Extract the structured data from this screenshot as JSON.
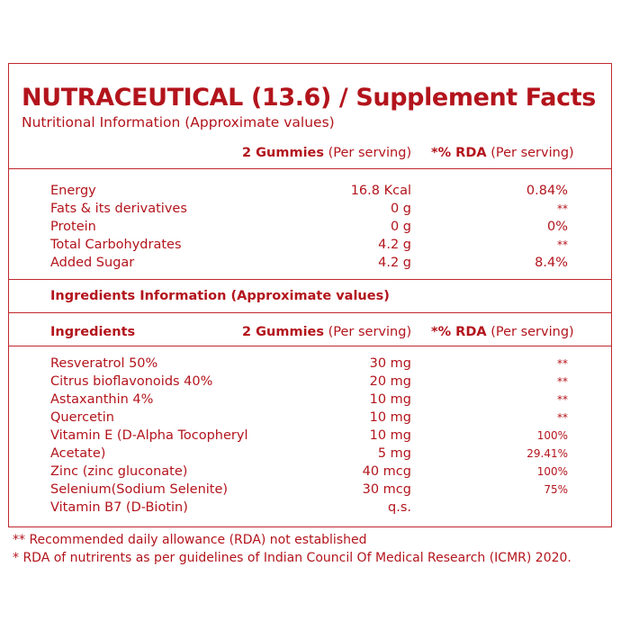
{
  "title": "NUTRACEUTICAL (13.6) / Supplement Facts",
  "subtitle": "Nutritional Information (Approximate values)",
  "nutrition_header": {
    "amount_bold": "2 Gummies",
    "amount_rest": " (Per serving)",
    "rda_bold": "*% RDA",
    "rda_rest": " (Per serving)"
  },
  "nutrition_rows": [
    {
      "name": "Energy",
      "amount": "16.8 Kcal",
      "rda": "0.84%"
    },
    {
      "name": "Fats & its derivatives",
      "amount": "0 g",
      "rda": "**"
    },
    {
      "name": "Protein",
      "amount": "0 g",
      "rda": "0%"
    },
    {
      "name": "Total Carbohydrates",
      "amount": "4.2 g",
      "rda": "**"
    },
    {
      "name": "Added Sugar",
      "amount": "4.2 g",
      "rda": "8.4%"
    }
  ],
  "ingredients_section_title": "Ingredients Information (Approximate values)",
  "ingredients_header": {
    "name": "Ingredients",
    "amount_bold": "2 Gummies",
    "amount_rest": " (Per serving)",
    "rda_bold": "*% RDA",
    "rda_rest": " (Per serving)"
  },
  "ingredient_rows": [
    {
      "name": "Resveratrol 50%",
      "amount": "30 mg",
      "rda": "**"
    },
    {
      "name": "Citrus bioflavonoids 40%",
      "amount": "20 mg",
      "rda": "**"
    },
    {
      "name": "Astaxanthin 4%",
      "amount": "10 mg",
      "rda": "**"
    },
    {
      "name": "Quercetin",
      "amount": "10 mg",
      "rda": "**"
    },
    {
      "name": "Vitamin E (D-Alpha Tocopheryl",
      "amount": "10 mg",
      "rda": "100%"
    },
    {
      "name": "Acetate)",
      "amount": "5 mg",
      "rda": "29.41%"
    },
    {
      "name": "Zinc (zinc gluconate)",
      "amount": "40 mcg",
      "rda": "100%"
    },
    {
      "name": "Selenium(Sodium Selenite)",
      "amount": "30 mcg",
      "rda": "75%"
    },
    {
      "name": "Vitamin B7 (D-Biotin)",
      "amount": "q.s.",
      "rda": ""
    }
  ],
  "footnotes": [
    "** Recommended daily allowance (RDA) not established",
    "* RDA of nutrirents as per guidelines of Indian Council Of Medical Research (ICMR) 2020."
  ]
}
